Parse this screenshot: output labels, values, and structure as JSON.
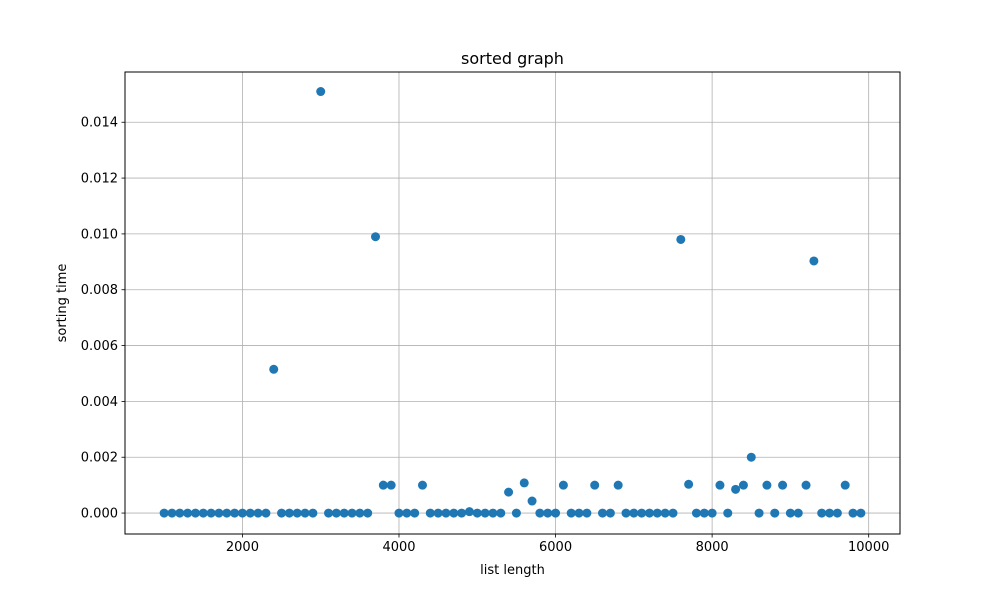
{
  "chart_data": {
    "type": "scatter",
    "title": "sorted graph",
    "xlabel": "list length",
    "ylabel": "sorting time",
    "xlim": [
      500,
      10400
    ],
    "ylim": [
      -0.00075,
      0.0158
    ],
    "x_ticks": [
      2000,
      4000,
      6000,
      8000,
      10000
    ],
    "x_tick_labels": [
      "2000",
      "4000",
      "6000",
      "8000",
      "10000"
    ],
    "y_ticks": [
      0.0,
      0.002,
      0.004,
      0.006,
      0.008,
      0.01,
      0.012,
      0.014
    ],
    "y_tick_labels": [
      "0.000",
      "0.002",
      "0.004",
      "0.006",
      "0.008",
      "0.010",
      "0.012",
      "0.014"
    ],
    "grid": true,
    "marker_color": "#1f77b4",
    "series": [
      {
        "x": [
          1000,
          1100,
          1200,
          1300,
          1400,
          1500,
          1600,
          1700,
          1800,
          1900,
          2000,
          2100,
          2200,
          2300,
          2400,
          2500,
          2600,
          2700,
          2800,
          2900,
          3000,
          3100,
          3200,
          3300,
          3400,
          3500,
          3600,
          3700,
          3800,
          3900,
          4000,
          4100,
          4200,
          4300,
          4400,
          4500,
          4600,
          4700,
          4800,
          4900,
          5000,
          5100,
          5200,
          5300,
          5400,
          5500,
          5600,
          5700,
          5800,
          5900,
          6000,
          6100,
          6200,
          6300,
          6400,
          6500,
          6600,
          6700,
          6800,
          6900,
          7000,
          7100,
          7200,
          7300,
          7400,
          7500,
          7600,
          7700,
          7800,
          7900,
          8000,
          8100,
          8200,
          8300,
          8400,
          8500,
          8600,
          8700,
          8800,
          8900,
          9000,
          9100,
          9200,
          9300,
          9400,
          9500,
          9600,
          9700,
          9800,
          9900
        ],
        "y": [
          0,
          0,
          0,
          0,
          0,
          0,
          0,
          0,
          0,
          0,
          0,
          0,
          0,
          0,
          0.00515,
          0,
          0,
          0,
          0,
          0,
          0.0151,
          0,
          0,
          0,
          0,
          0,
          0,
          0.0099,
          0.001,
          0.001,
          0,
          0,
          0,
          0.001,
          0,
          0,
          0,
          0,
          0,
          5e-05,
          0,
          0,
          0,
          0,
          0.00075,
          0,
          0.00108,
          0.00043,
          0,
          0,
          0,
          0.001,
          0,
          0,
          0,
          0.001,
          0,
          0,
          0.001,
          0,
          0,
          0,
          0,
          0,
          0,
          0,
          0.0098,
          0.00103,
          0,
          0,
          0,
          0.001,
          0,
          0.00085,
          0.001,
          0.002,
          0,
          0.001,
          0,
          0.001,
          0,
          0,
          0.001,
          0.00903,
          0,
          0,
          0,
          0.001,
          0,
          0
        ]
      }
    ]
  }
}
